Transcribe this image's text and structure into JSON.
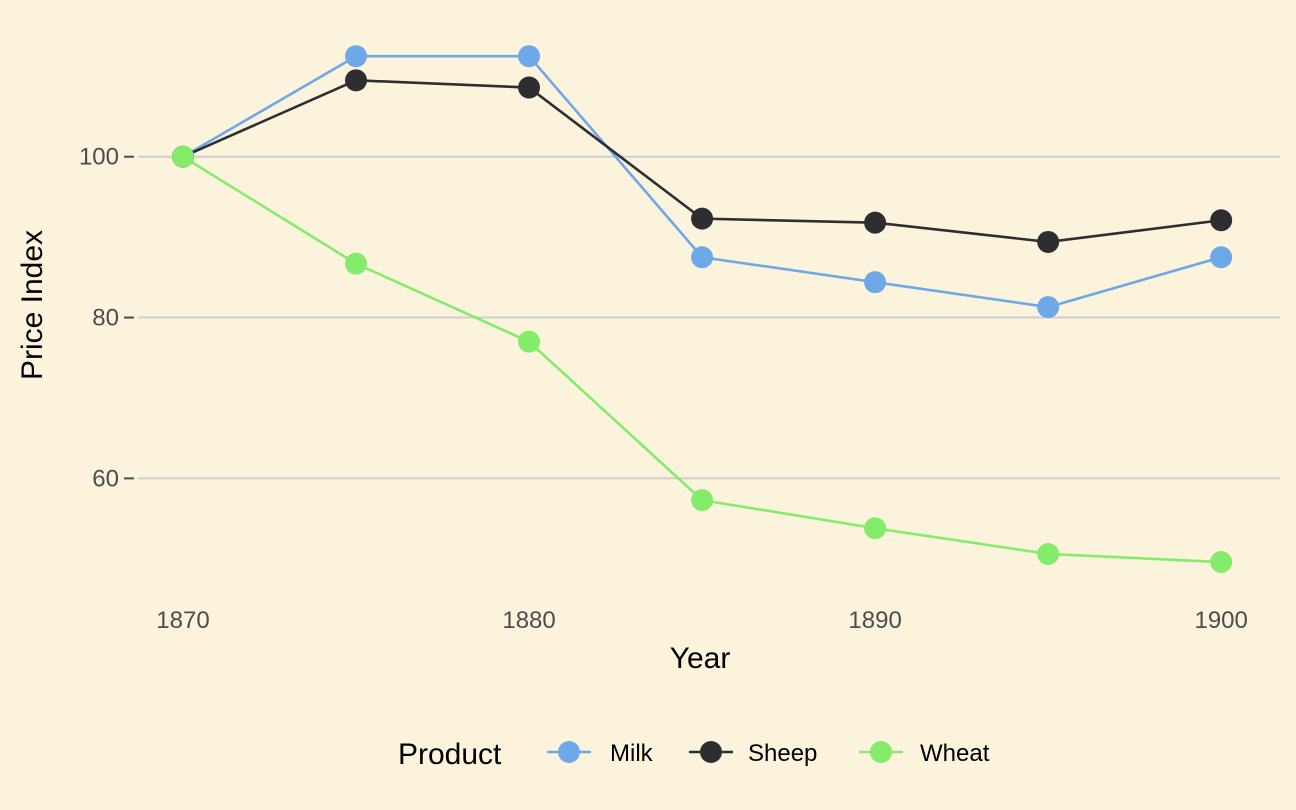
{
  "chart_data": {
    "type": "line",
    "xlabel": "Year",
    "ylabel": "Price Index",
    "x": [
      1870,
      1875,
      1880,
      1885,
      1890,
      1895,
      1900
    ],
    "x_ticks": [
      "1870",
      "1880",
      "1890",
      "1900"
    ],
    "y_ticks": [
      "60",
      "80",
      "100"
    ],
    "xlim": [
      1868.7,
      1901.7
    ],
    "ylim": [
      45.5,
      117.0
    ],
    "grid": "horizontal major lines",
    "legend": {
      "title": "Product",
      "position": "bottom",
      "entries": [
        "Milk",
        "Sheep",
        "Wheat"
      ]
    },
    "series": [
      {
        "name": "Milk",
        "color": "#6fa8e8",
        "values": [
          100,
          112.5,
          112.5,
          87.5,
          84.4,
          81.3,
          87.5
        ]
      },
      {
        "name": "Sheep",
        "color": "#2e2e32",
        "values": [
          100,
          109.5,
          108.6,
          92.3,
          91.8,
          89.4,
          92.1
        ]
      },
      {
        "name": "Wheat",
        "color": "#84ec6a",
        "values": [
          100,
          86.7,
          77.0,
          57.3,
          53.8,
          50.6,
          49.6
        ]
      }
    ]
  }
}
